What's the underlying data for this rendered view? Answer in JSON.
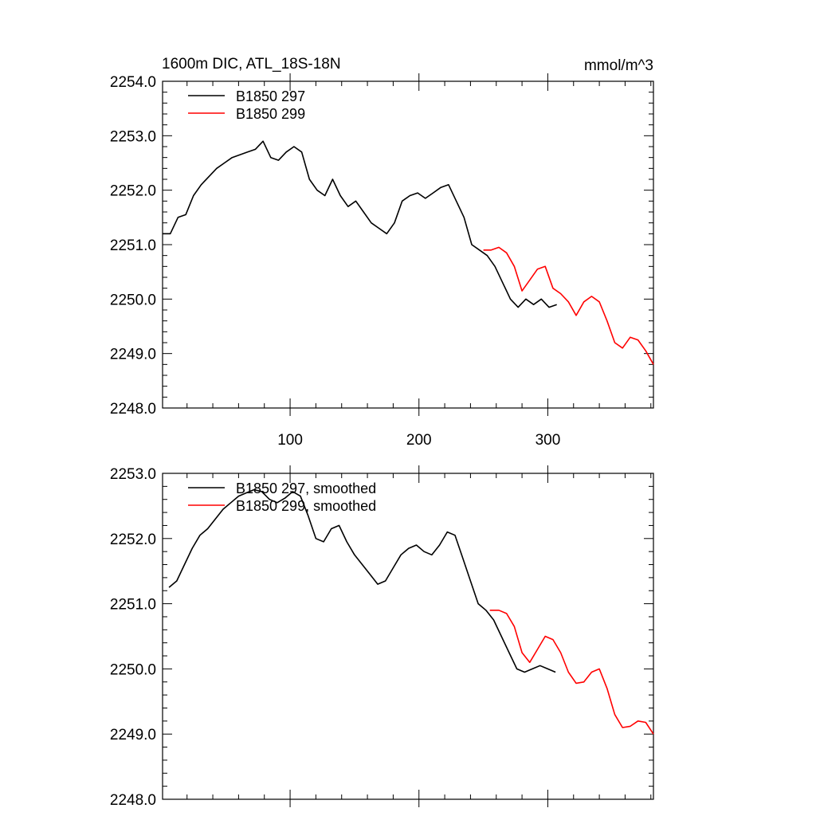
{
  "chart_data": [
    {
      "type": "line",
      "title": "1600m DIC, ATL_18S-18N",
      "units": "mmol/m^3",
      "xlabel": "",
      "ylabel": "",
      "xlim": [
        1,
        382
      ],
      "ylim": [
        2248.0,
        2254.0
      ],
      "xticks": [
        100,
        200,
        300
      ],
      "xtick_labels": [
        "100",
        "200",
        "300"
      ],
      "yticks": [
        2248.0,
        2249.0,
        2250.0,
        2251.0,
        2252.0,
        2253.0,
        2254.0
      ],
      "ytick_labels": [
        "2248.0",
        "2249.0",
        "2250.0",
        "2251.0",
        "2252.0",
        "2253.0",
        "2254.0"
      ],
      "legend": [
        "B1850 297",
        "B1850 299"
      ],
      "series": [
        {
          "name": "B1850 297",
          "color": "#000000",
          "x": [
            1,
            7,
            13,
            19,
            25,
            31,
            37,
            43,
            49,
            55,
            61,
            67,
            73,
            79,
            85,
            91,
            97,
            103,
            109,
            115,
            121,
            127,
            133,
            139,
            145,
            151,
            157,
            163,
            169,
            175,
            181,
            187,
            193,
            199,
            205,
            211,
            217,
            223,
            229,
            235,
            241,
            247,
            253,
            259,
            265,
            271,
            277,
            283,
            289,
            295,
            301,
            307
          ],
          "y": [
            2251.2,
            2251.2,
            2251.5,
            2251.55,
            2251.9,
            2252.1,
            2252.25,
            2252.4,
            2252.5,
            2252.6,
            2252.65,
            2252.7,
            2252.75,
            2252.9,
            2252.6,
            2252.55,
            2252.7,
            2252.8,
            2252.7,
            2252.2,
            2252.0,
            2251.9,
            2252.2,
            2251.9,
            2251.7,
            2251.8,
            2251.6,
            2251.4,
            2251.3,
            2251.2,
            2251.4,
            2251.8,
            2251.9,
            2251.95,
            2251.85,
            2251.95,
            2252.05,
            2252.1,
            2251.8,
            2251.5,
            2251.0,
            2250.9,
            2250.8,
            2250.6,
            2250.3,
            2250.0,
            2249.85,
            2250.0,
            2249.9,
            2250.0,
            2249.85,
            2249.9
          ]
        },
        {
          "name": "B1850 299",
          "color": "#ff0000",
          "x": [
            250,
            256,
            262,
            268,
            274,
            280,
            286,
            292,
            298,
            304,
            310,
            316,
            322,
            328,
            334,
            340,
            346,
            352,
            358,
            364,
            370,
            376,
            382
          ],
          "y": [
            2250.9,
            2250.9,
            2250.95,
            2250.85,
            2250.6,
            2250.15,
            2250.35,
            2250.55,
            2250.6,
            2250.2,
            2250.1,
            2249.95,
            2249.7,
            2249.95,
            2250.05,
            2249.95,
            2249.6,
            2249.2,
            2249.1,
            2249.3,
            2249.25,
            2249.05,
            2248.8
          ]
        }
      ]
    },
    {
      "type": "line",
      "title": "",
      "xlabel": "",
      "ylabel": "",
      "xlim": [
        1,
        382
      ],
      "ylim": [
        2248.0,
        2253.0
      ],
      "xticks": [
        100,
        200,
        300
      ],
      "yticks": [
        2248.0,
        2249.0,
        2250.0,
        2251.0,
        2252.0,
        2253.0
      ],
      "ytick_labels": [
        "2248.0",
        "2249.0",
        "2250.0",
        "2251.0",
        "2252.0",
        "2253.0"
      ],
      "legend": [
        "B1850 297, smoothed",
        "B1850 299, smoothed"
      ],
      "series": [
        {
          "name": "B1850 297, smoothed",
          "color": "#000000",
          "x": [
            6,
            12,
            18,
            24,
            30,
            36,
            42,
            48,
            54,
            60,
            66,
            72,
            78,
            84,
            90,
            96,
            102,
            108,
            114,
            120,
            126,
            132,
            138,
            144,
            150,
            156,
            162,
            168,
            174,
            180,
            186,
            192,
            198,
            204,
            210,
            216,
            222,
            228,
            234,
            240,
            246,
            252,
            258,
            264,
            270,
            276,
            282,
            288,
            294,
            300,
            306
          ],
          "y": [
            2251.25,
            2251.35,
            2251.6,
            2251.85,
            2252.05,
            2252.15,
            2252.3,
            2252.45,
            2252.55,
            2252.65,
            2252.7,
            2252.75,
            2252.72,
            2252.6,
            2252.55,
            2252.62,
            2252.72,
            2252.65,
            2252.35,
            2252.0,
            2251.95,
            2252.15,
            2252.2,
            2251.95,
            2251.75,
            2251.6,
            2251.45,
            2251.3,
            2251.35,
            2251.55,
            2251.75,
            2251.85,
            2251.9,
            2251.8,
            2251.75,
            2251.9,
            2252.1,
            2252.05,
            2251.7,
            2251.35,
            2251.0,
            2250.9,
            2250.75,
            2250.5,
            2250.25,
            2250.0,
            2249.95,
            2250.0,
            2250.05,
            2250.0,
            2249.95
          ]
        },
        {
          "name": "B1850 299, smoothed",
          "color": "#ff0000",
          "x": [
            255,
            262,
            268,
            274,
            280,
            286,
            292,
            298,
            304,
            310,
            316,
            322,
            328,
            334,
            340,
            346,
            352,
            358,
            364,
            370,
            376,
            382
          ],
          "y": [
            2250.9,
            2250.9,
            2250.85,
            2250.65,
            2250.25,
            2250.1,
            2250.3,
            2250.5,
            2250.45,
            2250.25,
            2249.95,
            2249.78,
            2249.8,
            2249.95,
            2250.0,
            2249.7,
            2249.3,
            2249.1,
            2249.12,
            2249.2,
            2249.18,
            2249.0
          ]
        }
      ]
    }
  ]
}
